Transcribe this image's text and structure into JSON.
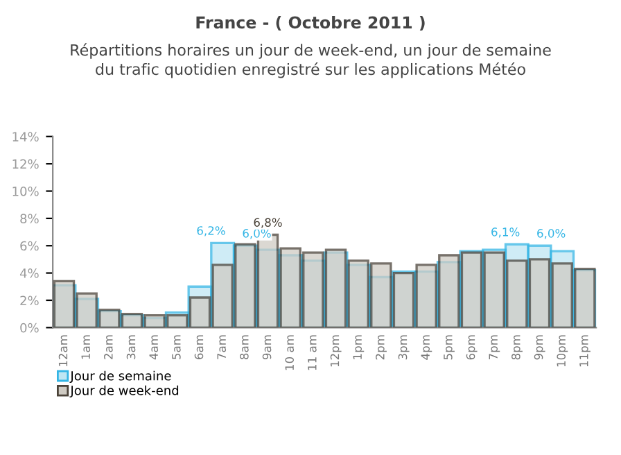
{
  "chart_data": {
    "type": "bar",
    "title": "France - ( Octobre 2011 )",
    "subtitle": "Répartitions horaires un jour de week-end, un jour de semaine\ndu trafic quotidien enregistré sur les applications Météo",
    "categories": [
      "12am",
      "1am",
      "2am",
      "3am",
      "4am",
      "5am",
      "6am",
      "7am",
      "8am",
      "9am",
      "10 am",
      "11 am",
      "12pm",
      "1pm",
      "2pm",
      "3pm",
      "4pm",
      "5pm",
      "6pm",
      "7pm",
      "8pm",
      "9pm",
      "10pm",
      "11pm"
    ],
    "series": [
      {
        "name": "Jour de semaine",
        "color": "#33b5e5",
        "values": [
          3.1,
          2.1,
          1.2,
          0.9,
          0.7,
          1.1,
          3.0,
          6.2,
          6.0,
          5.7,
          5.3,
          4.9,
          5.5,
          4.6,
          3.7,
          4.1,
          4.1,
          4.8,
          5.6,
          5.7,
          6.1,
          6.0,
          5.6,
          4.2
        ],
        "value_labels": [
          null,
          null,
          null,
          null,
          null,
          null,
          null,
          "6,2%",
          "6,0%",
          null,
          null,
          null,
          null,
          null,
          null,
          null,
          null,
          null,
          null,
          null,
          "6,1%",
          "6,0%",
          null,
          null
        ]
      },
      {
        "name": "Jour de week-end",
        "color": "#4a4238",
        "values": [
          3.4,
          2.5,
          1.3,
          1.0,
          0.9,
          0.9,
          2.2,
          4.6,
          6.1,
          6.8,
          5.8,
          5.5,
          5.7,
          4.9,
          4.7,
          4.0,
          4.6,
          5.3,
          5.5,
          5.5,
          4.9,
          5.0,
          4.7,
          4.3
        ],
        "value_labels": [
          null,
          null,
          null,
          null,
          null,
          null,
          null,
          null,
          null,
          "6,8%",
          null,
          null,
          null,
          null,
          null,
          null,
          null,
          null,
          null,
          null,
          null,
          null,
          null,
          null
        ]
      }
    ],
    "ylim": [
      0,
      14
    ],
    "yticks": [
      {
        "value": 0,
        "label": "0%"
      },
      {
        "value": 2,
        "label": "2%"
      },
      {
        "value": 4,
        "label": "4%"
      },
      {
        "value": 6,
        "label": "6%"
      },
      {
        "value": 8,
        "label": "8%"
      },
      {
        "value": 10,
        "label": "10%"
      },
      {
        "value": 12,
        "label": "12%"
      },
      {
        "value": 14,
        "label": "14%"
      }
    ],
    "grid": false,
    "legend": "bottom left"
  }
}
